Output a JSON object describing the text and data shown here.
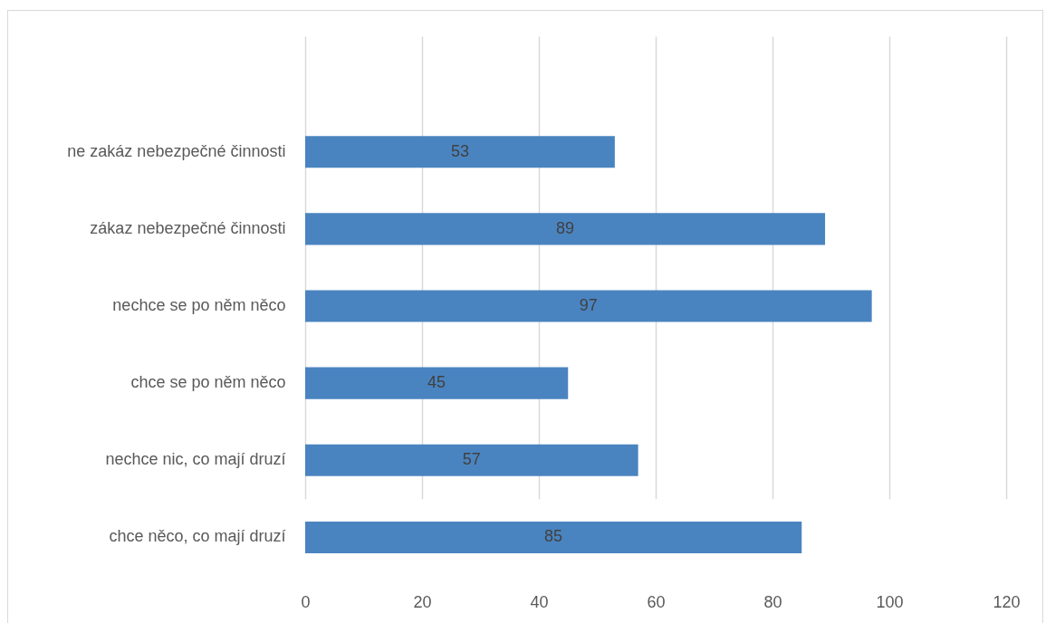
{
  "chart_data": {
    "type": "bar",
    "orientation": "horizontal",
    "categories": [
      "ne zakáz nebezpečné činnosti",
      "zákaz nebezpečné činnosti",
      "nechce se po něm něco",
      "chce se po něm něco",
      "nechce nic, co mají druzí",
      "chce něco, co mají druzí"
    ],
    "values": [
      53,
      89,
      97,
      45,
      57,
      85
    ],
    "color": "#4a84c0",
    "xlim": [
      0,
      120
    ],
    "xticks": [
      0,
      20,
      40,
      60,
      80,
      100,
      120
    ],
    "grid": "x",
    "data_labels": true
  }
}
